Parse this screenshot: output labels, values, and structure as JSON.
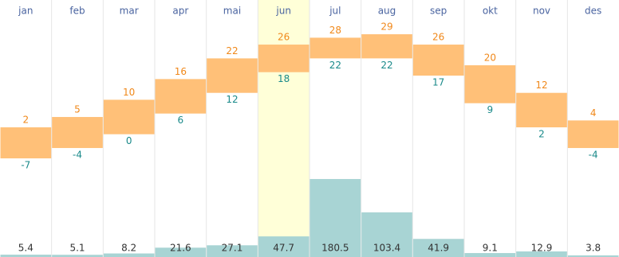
{
  "chart_data": {
    "type": "climate",
    "categories": [
      "jan",
      "feb",
      "mar",
      "apr",
      "mai",
      "jun",
      "jul",
      "aug",
      "sep",
      "okt",
      "nov",
      "des"
    ],
    "highlight_index": 5,
    "high": {
      "color": "#ffc078",
      "label_color": "#f0881a",
      "values": [
        2,
        5,
        10,
        16,
        22,
        26,
        28,
        29,
        26,
        20,
        12,
        4
      ]
    },
    "low": {
      "label_color": "#1a8a8a",
      "values": [
        -7,
        -4,
        0,
        6,
        12,
        18,
        22,
        22,
        17,
        9,
        2,
        -4
      ]
    },
    "precipitation": {
      "color": "#a8d4d4",
      "values": [
        5.4,
        5.1,
        8.2,
        21.6,
        27.1,
        47.7,
        180.5,
        103.4,
        41.9,
        9.1,
        12.9,
        3.8
      ]
    }
  }
}
